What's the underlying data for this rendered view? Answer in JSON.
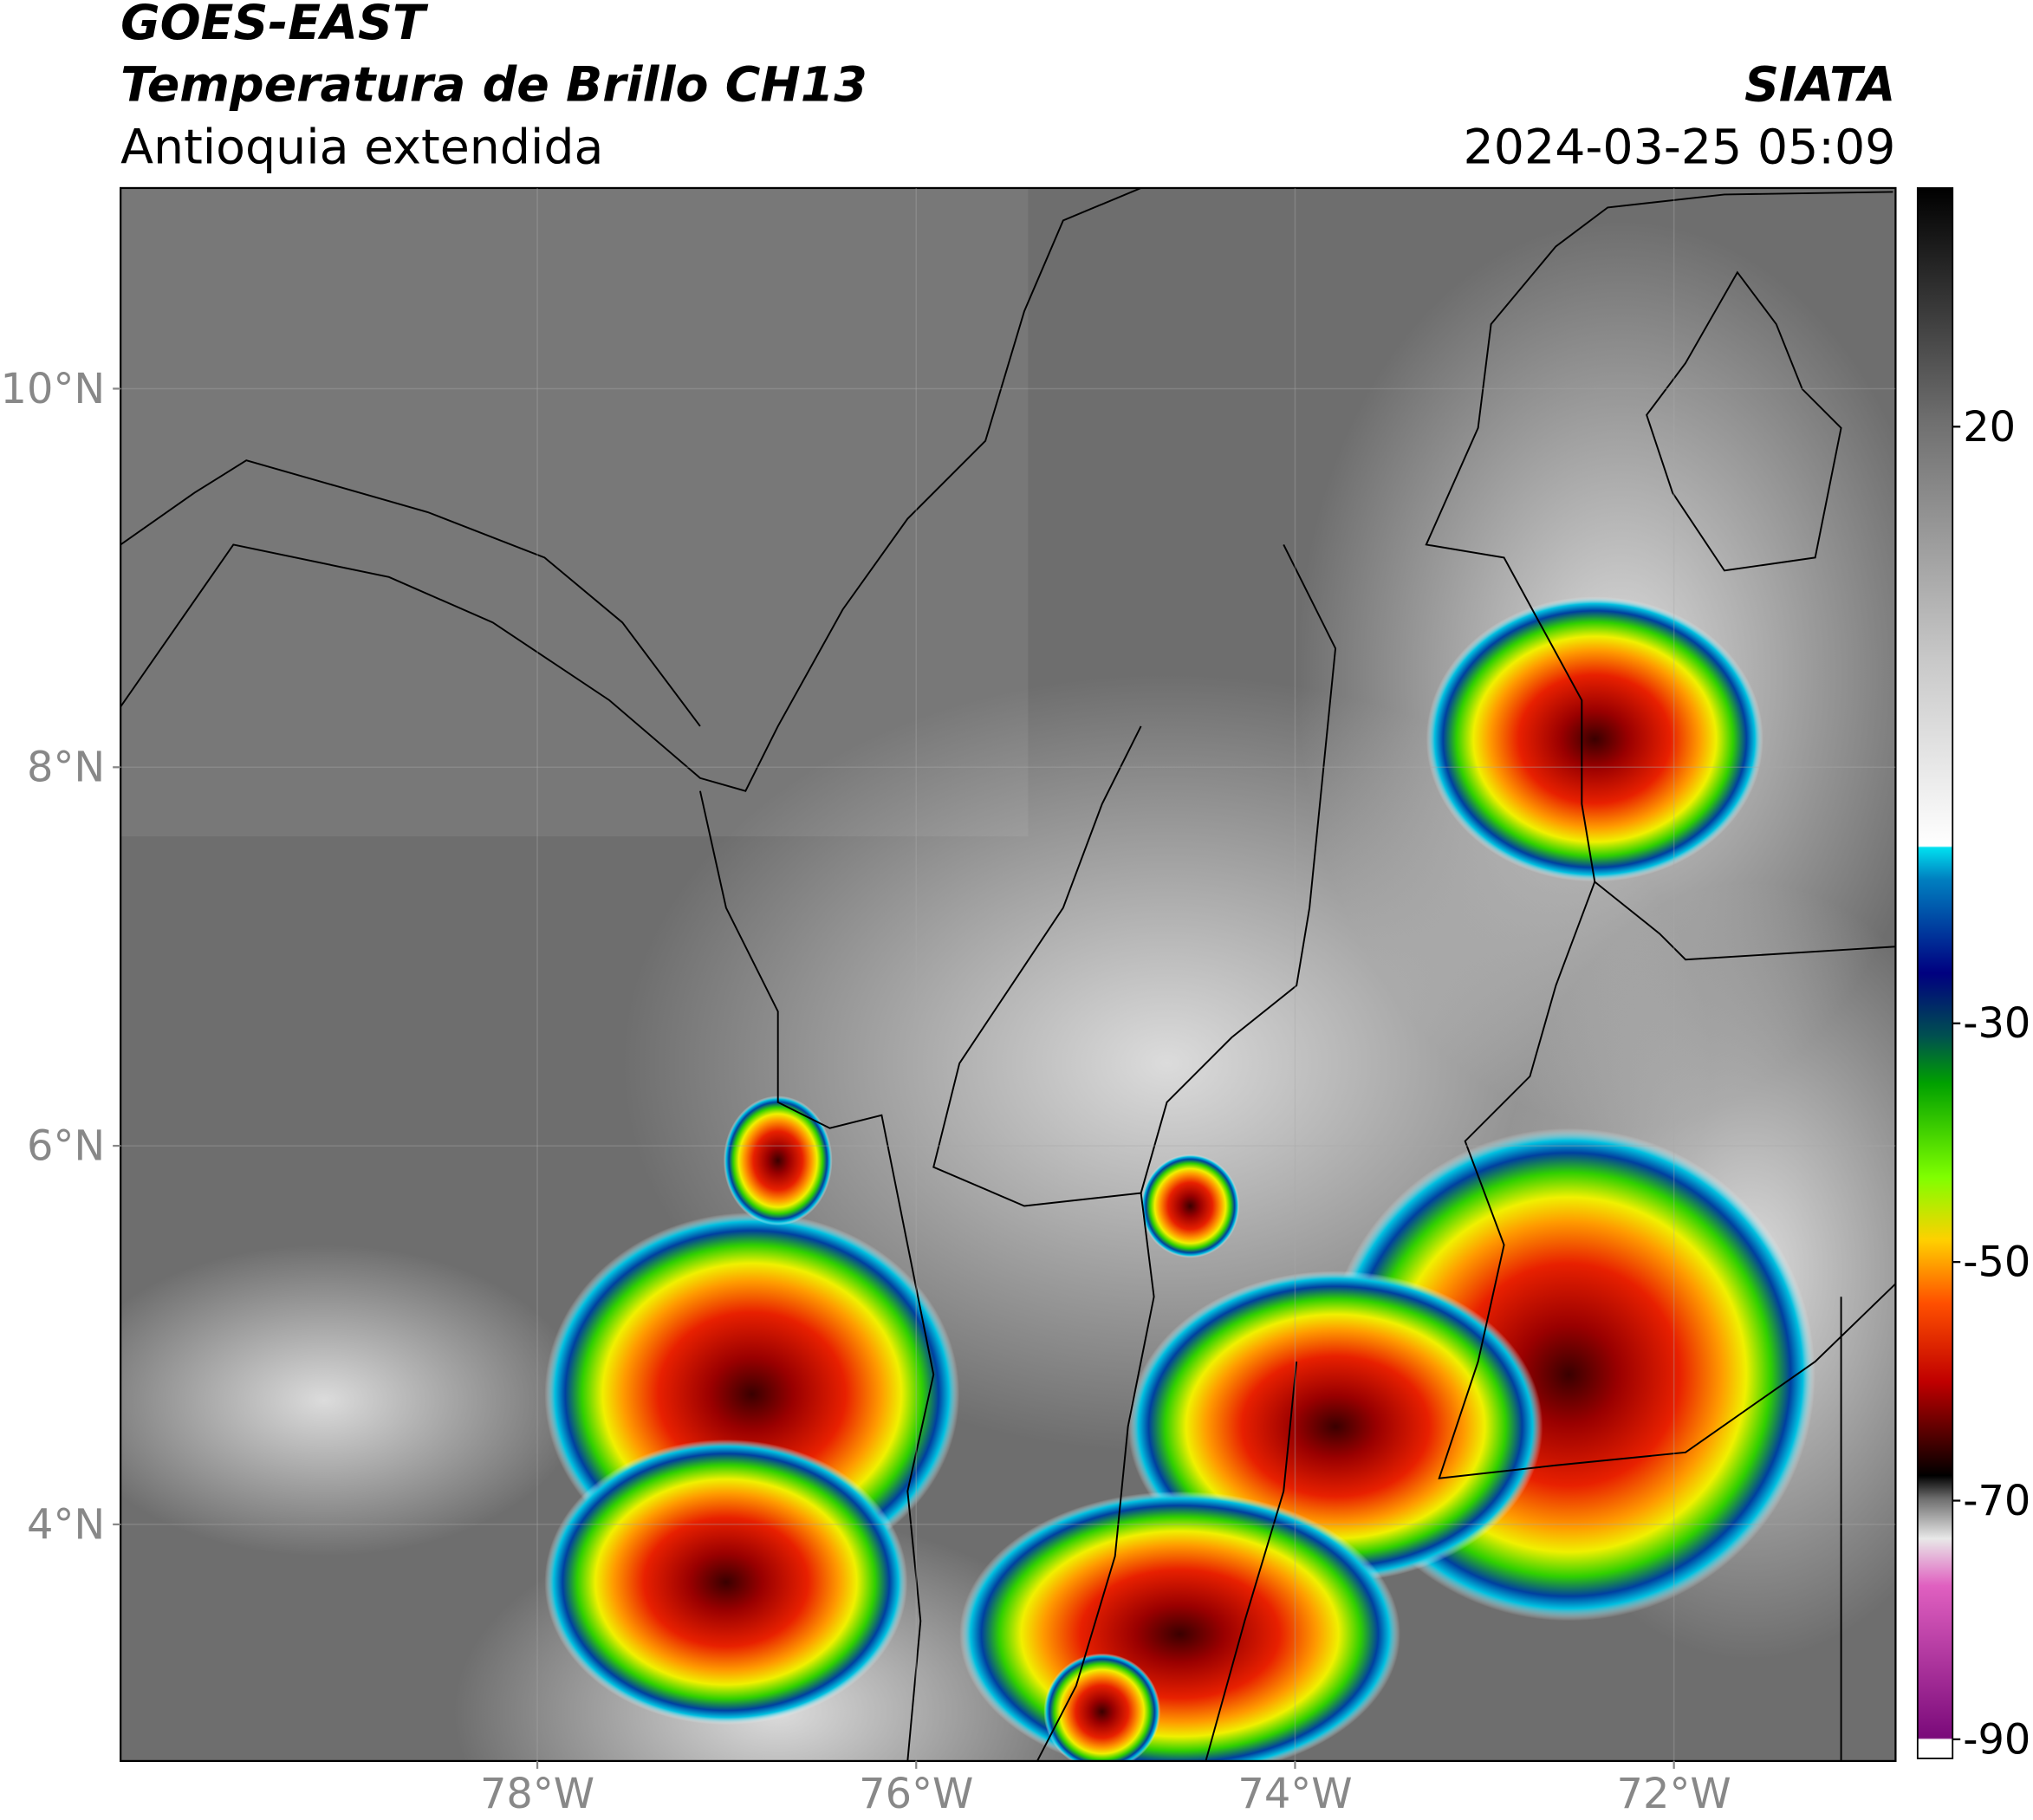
{
  "header": {
    "title": "GOES-EAST",
    "subtitle": "Temperatura de Brillo CH13",
    "region": "Antioquia extendida",
    "source": "SIATA",
    "datetime": "2024-03-25 05:09"
  },
  "map": {
    "xlim": [
      -80.2,
      -70.83
    ],
    "ylim": [
      2.75,
      11.06
    ],
    "xticks": [
      {
        "value": -78,
        "label": "78°W"
      },
      {
        "value": -76,
        "label": "76°W"
      },
      {
        "value": -74,
        "label": "74°W"
      },
      {
        "value": -72,
        "label": "72°W"
      }
    ],
    "yticks": [
      {
        "value": 4,
        "label": "4°N"
      },
      {
        "value": 6,
        "label": "6°N"
      },
      {
        "value": 8,
        "label": "8°N"
      },
      {
        "value": 10,
        "label": "10°N"
      }
    ],
    "grid": true
  },
  "colorbar": {
    "lim": [
      -91.6,
      40
    ],
    "ticks": [
      20,
      -30,
      -50,
      -70,
      -90
    ]
  }
}
